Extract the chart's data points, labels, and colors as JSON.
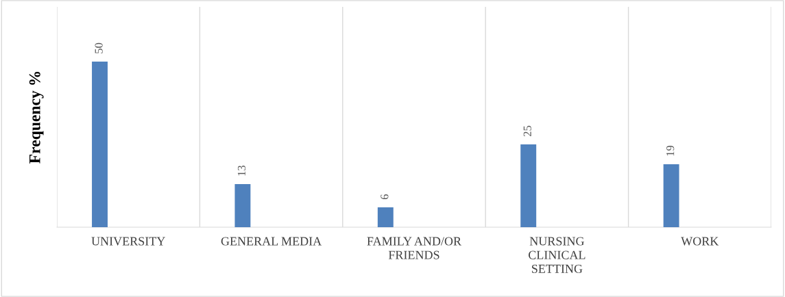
{
  "chart_data": {
    "type": "bar",
    "ylabel": "Frequency %",
    "categories": [
      "UNIVERSITY",
      "GENERAL MEDIA",
      "FAMILY AND/OR\nFRIENDS",
      "NURSING\nCLINICAL\nSETTING",
      "WORK"
    ],
    "values": [
      50,
      13,
      6,
      25,
      19
    ],
    "color": "#4f81bd",
    "tick_labels": "x",
    "data_labels": true,
    "grid": "x",
    "legend": false
  }
}
